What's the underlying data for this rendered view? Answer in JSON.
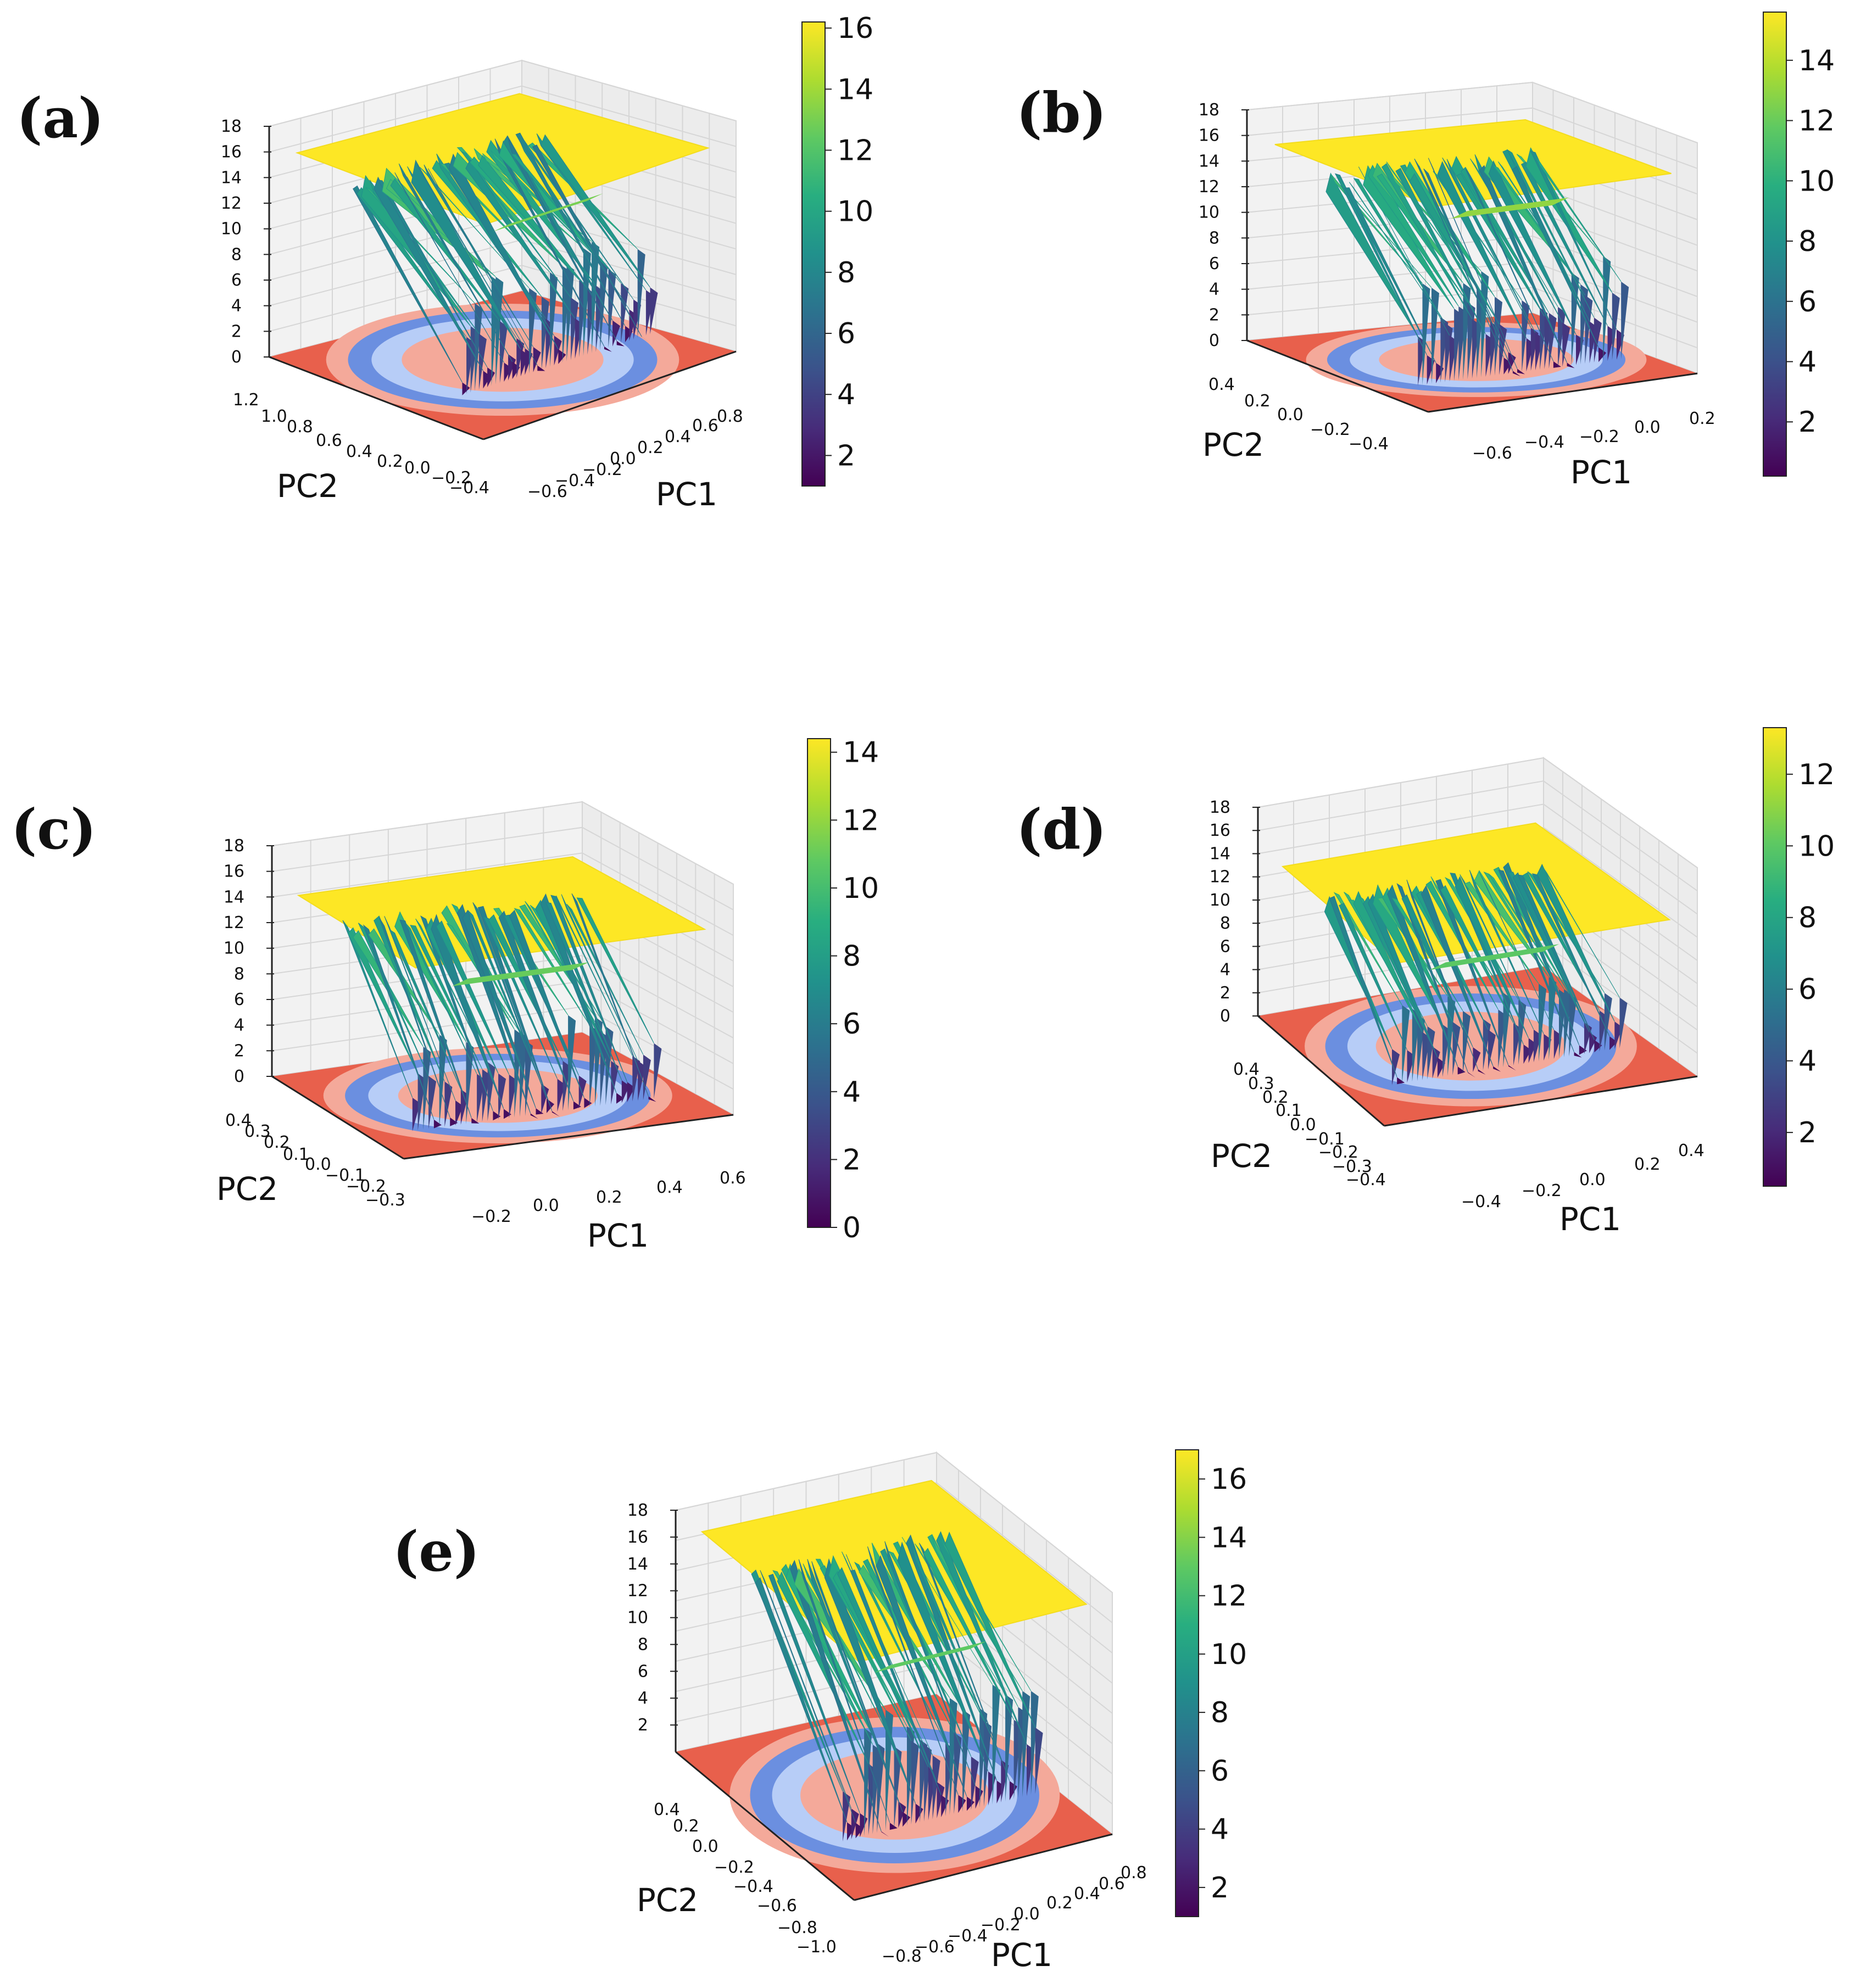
{
  "figure": {
    "colormap_surface": "viridis",
    "colormap_floor": "coolwarm",
    "palette": {
      "yellow": "#fde725",
      "green": "#35b779",
      "teal": "#21918c",
      "blue": "#31688e",
      "indigo": "#443983",
      "purple": "#440154",
      "floor_red": "#e8604c",
      "floor_pink": "#f4a99a",
      "floor_blue": "#6b8fe0",
      "floor_light_blue": "#b7cdf7"
    }
  },
  "chart_data": [
    {
      "type": "surface3d",
      "panel": "(a)",
      "xlabel": "PC1",
      "ylabel": "PC2",
      "zlim": [
        0,
        18
      ],
      "z_ticks": [
        "18",
        "16",
        "14",
        "12",
        "10",
        "8",
        "6",
        "4",
        "2",
        "0"
      ],
      "x_ticks": [
        "−0.6",
        "−0.4",
        "−0.2",
        "0.0",
        "0.2",
        "0.4",
        "0.6",
        "0.8"
      ],
      "y_ticks": [
        "1.2",
        "1.0",
        "0.8",
        "0.6",
        "0.4",
        "0.2",
        "0.0",
        "−0.2",
        "−0.4"
      ],
      "colorbar_ticks": [
        "16",
        "14",
        "12",
        "10",
        "8",
        "6",
        "4",
        "2"
      ],
      "colorbar_range": [
        1,
        16.2
      ],
      "surface": {
        "plateau": 16,
        "ledge": 13,
        "min": 1
      }
    },
    {
      "type": "surface3d",
      "panel": "(b)",
      "xlabel": "PC1",
      "ylabel": "PC2",
      "zlim": [
        0,
        18
      ],
      "z_ticks": [
        "18",
        "16",
        "14",
        "12",
        "10",
        "8",
        "6",
        "4",
        "2",
        "0"
      ],
      "x_ticks": [
        "−0.6",
        "−0.4",
        "−0.2",
        "0.0",
        "0.2"
      ],
      "y_ticks": [
        "0.4",
        "0.2",
        "0.0",
        "−0.2",
        "−0.4"
      ],
      "colorbar_ticks": [
        "14",
        "12",
        "10",
        "8",
        "6",
        "4",
        "2"
      ],
      "colorbar_range": [
        0.2,
        15.6
      ],
      "surface": {
        "plateau": 15.5,
        "ledge": 13,
        "min": 0.3
      }
    },
    {
      "type": "surface3d",
      "panel": "(c)",
      "xlabel": "PC1",
      "ylabel": "PC2",
      "zlim": [
        0,
        18
      ],
      "z_ticks": [
        "18",
        "16",
        "14",
        "12",
        "10",
        "8",
        "6",
        "4",
        "2",
        "0"
      ],
      "x_ticks": [
        "−0.2",
        "0.0",
        "0.2",
        "0.4",
        "0.6"
      ],
      "y_ticks": [
        "0.4",
        "0.3",
        "0.2",
        "0.1",
        "0.0",
        "−0.1",
        "−0.2",
        "−0.3"
      ],
      "colorbar_ticks": [
        "14",
        "12",
        "10",
        "8",
        "6",
        "4",
        "2",
        "0"
      ],
      "colorbar_range": [
        0,
        14.4
      ],
      "surface": {
        "plateau": 14.3,
        "ledge": 11,
        "min": 0.1
      }
    },
    {
      "type": "surface3d",
      "panel": "(d)",
      "xlabel": "PC1",
      "ylabel": "PC2",
      "zlim": [
        0,
        18
      ],
      "z_ticks": [
        "18",
        "16",
        "14",
        "12",
        "10",
        "8",
        "6",
        "4",
        "2",
        "0"
      ],
      "x_ticks": [
        "−0.4",
        "−0.2",
        "0.0",
        "0.2",
        "0.4"
      ],
      "y_ticks": [
        "0.4",
        "0.3",
        "0.2",
        "0.1",
        "0.0",
        "−0.1",
        "−0.2",
        "−0.3",
        "−0.4"
      ],
      "colorbar_ticks": [
        "12",
        "10",
        "8",
        "6",
        "4",
        "2"
      ],
      "colorbar_range": [
        0.5,
        13.3
      ],
      "surface": {
        "plateau": 13.2,
        "ledge": 10,
        "min": 0.6
      }
    },
    {
      "type": "surface3d",
      "panel": "(e)",
      "xlabel": "PC1",
      "ylabel": "PC2",
      "zlim": [
        0,
        18
      ],
      "z_ticks": [
        "18",
        "16",
        "14",
        "12",
        "10",
        "8",
        "6",
        "4",
        "2"
      ],
      "x_ticks": [
        "−0.8",
        "−0.6",
        "−0.4",
        "−0.2",
        "0.0",
        "0.2",
        "0.4",
        "0.6",
        "0.8"
      ],
      "y_ticks": [
        "0.4",
        "0.2",
        "0.0",
        "−0.2",
        "−0.4",
        "−0.6",
        "−0.8",
        "−1.0"
      ],
      "colorbar_ticks": [
        "16",
        "14",
        "12",
        "10",
        "8",
        "6",
        "4",
        "2"
      ],
      "colorbar_range": [
        1,
        17
      ],
      "surface": {
        "plateau": 16.8,
        "ledge": 13,
        "min": 1
      }
    }
  ]
}
